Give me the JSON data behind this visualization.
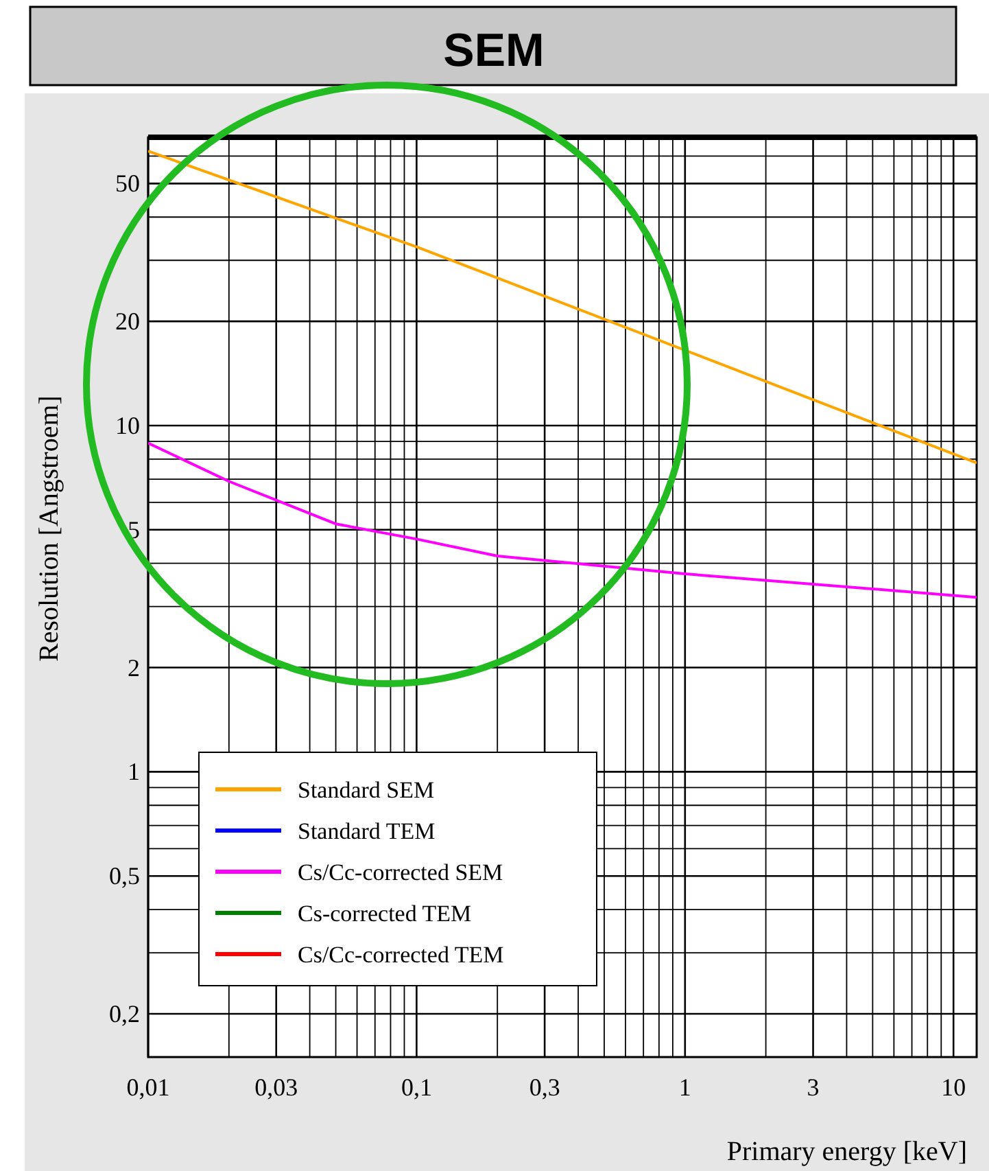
{
  "chart_data": {
    "type": "line",
    "title": "SEM",
    "xlabel": "Primary energy [keV]",
    "ylabel": "Resolution [Angstroem]",
    "log": "xy",
    "grid": true,
    "legend": "bottom left",
    "marker": "none",
    "line_style": "solid",
    "xlim": [
      0.01,
      12.2
    ],
    "ylim": [
      0.15,
      68
    ],
    "xticks": [
      {
        "value": 0.01,
        "label": "0,01"
      },
      {
        "value": 0.02,
        "label": null
      },
      {
        "value": 0.03,
        "label": "0,03"
      },
      {
        "value": 0.04,
        "label": null
      },
      {
        "value": 0.05,
        "label": null
      },
      {
        "value": 0.06,
        "label": null
      },
      {
        "value": 0.07,
        "label": null
      },
      {
        "value": 0.08,
        "label": null
      },
      {
        "value": 0.09,
        "label": null
      },
      {
        "value": 0.1,
        "label": "0,1"
      },
      {
        "value": 0.2,
        "label": null
      },
      {
        "value": 0.3,
        "label": "0,3"
      },
      {
        "value": 0.4,
        "label": null
      },
      {
        "value": 0.5,
        "label": null
      },
      {
        "value": 0.6,
        "label": null
      },
      {
        "value": 0.7,
        "label": null
      },
      {
        "value": 0.8,
        "label": null
      },
      {
        "value": 0.9,
        "label": null
      },
      1,
      {
        "value": 2,
        "label": null
      },
      3,
      {
        "value": 4,
        "label": null
      },
      {
        "value": 5,
        "label": null
      },
      {
        "value": 6,
        "label": null
      },
      {
        "value": 7,
        "label": null
      },
      {
        "value": 8,
        "label": null
      },
      {
        "value": 9,
        "label": null
      },
      10
    ],
    "yticks": [
      {
        "value": 0.2,
        "label": "0,2"
      },
      {
        "value": 0.3,
        "label": null
      },
      {
        "value": 0.4,
        "label": null
      },
      {
        "value": 0.5,
        "label": "0,5"
      },
      {
        "value": 0.6,
        "label": null
      },
      {
        "value": 0.7,
        "label": null
      },
      {
        "value": 0.8,
        "label": null
      },
      {
        "value": 0.9,
        "label": null
      },
      1,
      2,
      {
        "value": 3,
        "label": null
      },
      {
        "value": 4,
        "label": null
      },
      5,
      {
        "value": 6,
        "label": null
      },
      {
        "value": 7,
        "label": null
      },
      {
        "value": 8,
        "label": null
      },
      {
        "value": 9,
        "label": null
      },
      10,
      20,
      {
        "value": 30,
        "label": null
      },
      {
        "value": 40,
        "label": null
      },
      50,
      {
        "value": 60,
        "label": null
      }
    ],
    "series": [
      {
        "name": "Standard SEM",
        "color": "#ffa500",
        "x": [
          0.01,
          0.1,
          1,
          12.2
        ],
        "values": [
          62,
          32.8,
          16.5,
          7.8
        ]
      },
      {
        "name": "Standard TEM",
        "color": "#0000ff"
      },
      {
        "name": "Cs/Cc-corrected SEM",
        "color": "#ff00ff",
        "x": [
          0.01,
          0.02,
          0.05,
          0.1,
          0.2,
          1,
          12.2
        ],
        "values": [
          8.9,
          6.9,
          5.2,
          4.7,
          4.2,
          3.73,
          3.19
        ]
      },
      {
        "name": "Cs-corrected TEM",
        "color": "#008000"
      },
      {
        "name": "Cs/Cc-corrected TEM",
        "color": "#ff0000"
      }
    ]
  }
}
